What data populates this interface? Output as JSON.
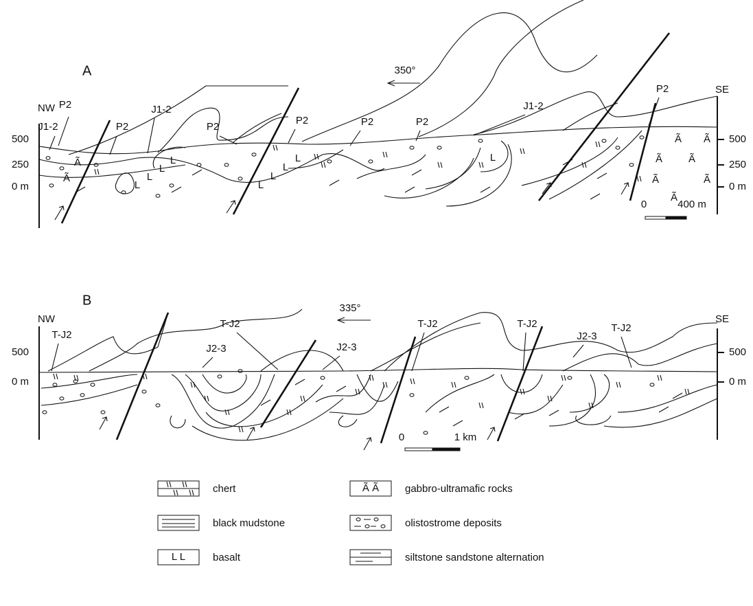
{
  "section_a": {
    "label": "A",
    "direction": "350°",
    "left_end": "NW",
    "right_end": "SE",
    "left_scale": [
      "500",
      "250",
      "0 m"
    ],
    "right_scale": [
      "500",
      "250",
      "0 m"
    ],
    "unit_labels": [
      "P2",
      "J1-2",
      "P2",
      "J1-2",
      "P2",
      "P2",
      "P2",
      "P2",
      "J1-2",
      "P2"
    ],
    "scale_bar": [
      "0",
      "400 m"
    ],
    "gabbro_symbols": [
      "Ã",
      "Ã",
      "Ã",
      "Ã",
      "Ã",
      "Ã",
      "Ã",
      "Ã",
      "Ã"
    ],
    "basalt_symbols": [
      "L",
      "L",
      "L",
      "L",
      "L",
      "L",
      "L",
      "L",
      "L"
    ]
  },
  "section_b": {
    "label": "B",
    "direction": "335°",
    "left_end": "NW",
    "right_end": "SE",
    "left_scale": [
      "500",
      "0 m"
    ],
    "right_scale": [
      "500",
      "0 m"
    ],
    "unit_labels": [
      "T-J2",
      "T-J2",
      "J2-3",
      "J2-3",
      "T-J2",
      "T-J2",
      "J2-3",
      "T-J2"
    ],
    "scale_bar": [
      "0",
      "1 km"
    ]
  },
  "legend": [
    {
      "label": "chert"
    },
    {
      "symbol": "Ã  Ã",
      "label": "gabbro-ultramafic rocks"
    },
    {
      "label": "black mudstone"
    },
    {
      "label": "olistostrome deposits"
    },
    {
      "symbol": "L   L",
      "label": "basalt"
    },
    {
      "label": "siltstone sandstone alternation"
    }
  ]
}
